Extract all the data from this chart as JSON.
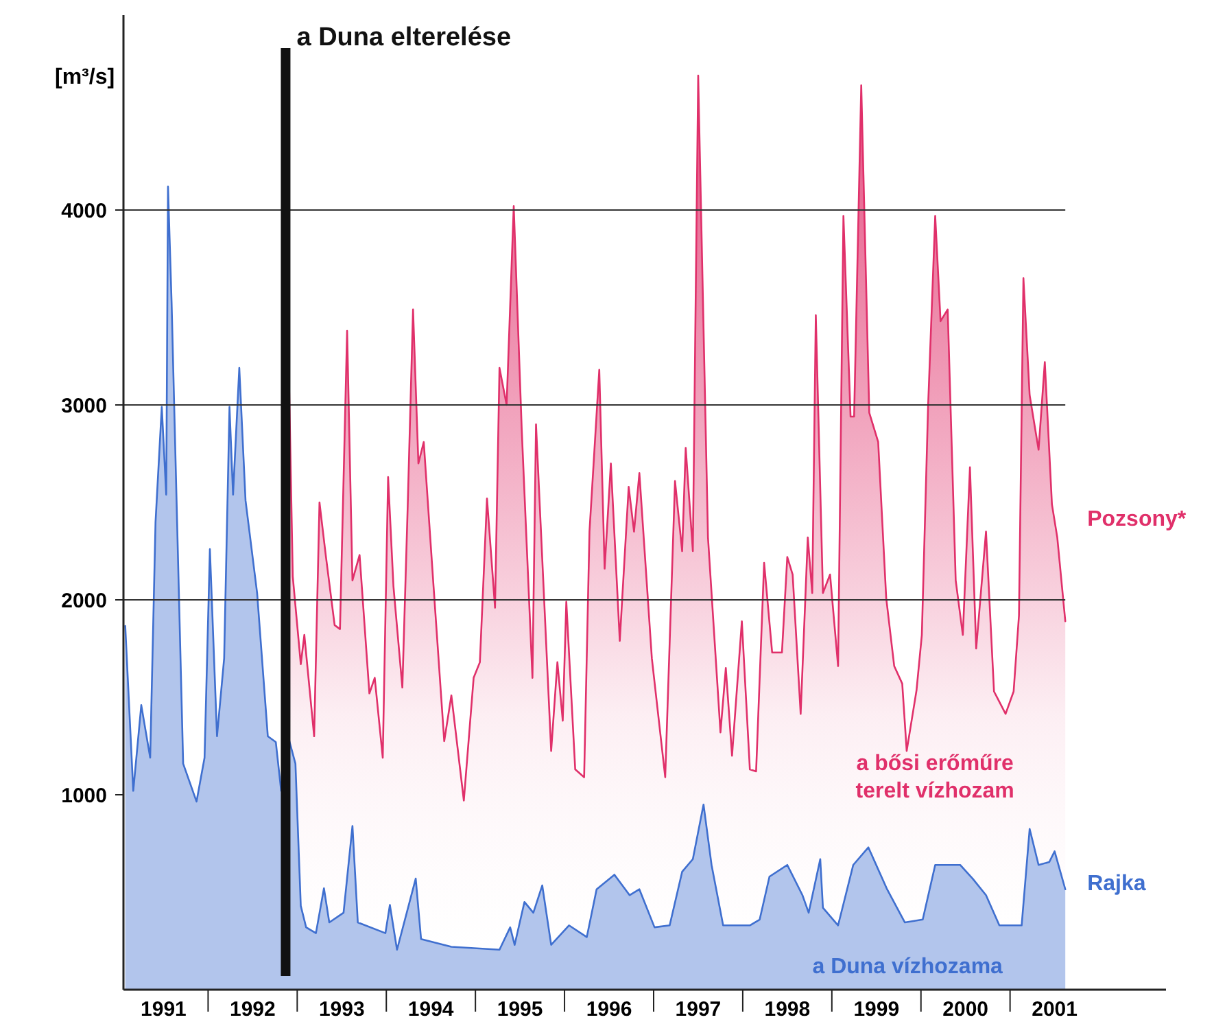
{
  "chart_data": {
    "type": "area",
    "ylabel": "[m³/s]",
    "xlim": [
      1991.05,
      2002.75
    ],
    "ylim": [
      0,
      5000
    ],
    "yticks": [
      1000,
      2000,
      3000,
      4000
    ],
    "xticks": [
      {
        "value": 1991.5,
        "label": "1991"
      },
      {
        "value": 1992,
        "label": null
      },
      {
        "value": 1992.5,
        "label": "1992"
      },
      {
        "value": 1993,
        "label": null
      },
      {
        "value": 1993.5,
        "label": "1993"
      },
      {
        "value": 1994,
        "label": null
      },
      {
        "value": 1994.5,
        "label": "1994"
      },
      {
        "value": 1995,
        "label": null
      },
      {
        "value": 1995.5,
        "label": "1995"
      },
      {
        "value": 1996,
        "label": null
      },
      {
        "value": 1996.5,
        "label": "1996"
      },
      {
        "value": 1997,
        "label": null
      },
      {
        "value": 1997.5,
        "label": "1997"
      },
      {
        "value": 1998,
        "label": null
      },
      {
        "value": 1998.5,
        "label": "1998"
      },
      {
        "value": 1999,
        "label": null
      },
      {
        "value": 1999.5,
        "label": "1999"
      },
      {
        "value": 2000,
        "label": null
      },
      {
        "value": 2000.5,
        "label": "2000"
      },
      {
        "value": 2001,
        "label": null
      },
      {
        "value": 2001.5,
        "label": "2001"
      }
    ],
    "series": [
      {
        "name": "Pozsony*",
        "color": "#e0306a",
        "x": [
          1992.9,
          1992.95,
          1993.04,
          1993.08,
          1993.19,
          1993.25,
          1993.32,
          1993.42,
          1993.48,
          1993.56,
          1993.62,
          1993.7,
          1993.81,
          1993.87,
          1993.96,
          1994.02,
          1994.08,
          1994.18,
          1994.24,
          1994.3,
          1994.36,
          1994.42,
          1994.53,
          1994.65,
          1994.73,
          1994.87,
          1994.98,
          1995.05,
          1995.13,
          1995.22,
          1995.27,
          1995.35,
          1995.43,
          1995.52,
          1995.64,
          1995.68,
          1995.85,
          1995.92,
          1995.98,
          1996.02,
          1996.12,
          1996.22,
          1996.28,
          1996.39,
          1996.45,
          1996.52,
          1996.62,
          1996.72,
          1996.78,
          1996.84,
          1996.98,
          1997.13,
          1997.24,
          1997.32,
          1997.36,
          1997.44,
          1997.5,
          1997.61,
          1997.75,
          1997.81,
          1997.88,
          1997.99,
          1998.08,
          1998.15,
          1998.24,
          1998.33,
          1998.44,
          1998.5,
          1998.56,
          1998.65,
          1998.73,
          1998.78,
          1998.82,
          1998.9,
          1998.98,
          1999.07,
          1999.13,
          1999.21,
          1999.25,
          1999.33,
          1999.42,
          1999.52,
          1999.61,
          1999.7,
          1999.79,
          1999.84,
          1999.95,
          2000.01,
          2000.08,
          2000.16,
          2000.22,
          2000.3,
          2000.39,
          2000.47,
          2000.55,
          2000.62,
          2000.73,
          2000.82,
          2000.95,
          2001.04,
          2001.1,
          2001.15,
          2001.22,
          2001.32,
          2001.39,
          2001.47,
          2001.53,
          2001.62
        ],
        "values": [
          3320,
          2120,
          1670,
          1820,
          1300,
          2500,
          2230,
          1870,
          1850,
          3380,
          2100,
          2230,
          1520,
          1600,
          1190,
          2630,
          2070,
          1550,
          2480,
          3490,
          2700,
          2810,
          2070,
          1275,
          1510,
          970,
          1600,
          1680,
          2520,
          1960,
          3190,
          3000,
          4020,
          2870,
          1600,
          2900,
          1225,
          1680,
          1380,
          1990,
          1130,
          1090,
          2350,
          3180,
          2160,
          2700,
          1790,
          2580,
          2350,
          2650,
          1700,
          1090,
          2610,
          2250,
          2780,
          2250,
          4690,
          2320,
          1320,
          1650,
          1200,
          1890,
          1130,
          1120,
          2190,
          1730,
          1730,
          2220,
          2130,
          1415,
          2320,
          2035,
          3460,
          2035,
          2130,
          1660,
          3970,
          2940,
          2940,
          4640,
          2960,
          2810,
          2010,
          1660,
          1570,
          1225,
          1535,
          1820,
          2990,
          3970,
          3430,
          3490,
          2100,
          1820,
          2680,
          1750,
          2350,
          1530,
          1415,
          1530,
          1920,
          3650,
          3050,
          2770,
          3220,
          2490,
          2320,
          1890
        ]
      },
      {
        "name": "Rajka",
        "color": "#3f6fcf",
        "x": [
          1991.07,
          1991.16,
          1991.25,
          1991.35,
          1991.41,
          1991.48,
          1991.53,
          1991.55,
          1991.59,
          1991.72,
          1991.87,
          1991.96,
          1992.02,
          1992.1,
          1992.18,
          1992.24,
          1992.28,
          1992.35,
          1992.42,
          1992.55,
          1992.67,
          1992.76,
          1992.82,
          1992.88,
          1992.98,
          1993.04,
          1993.1,
          1993.21,
          1993.3,
          1993.36,
          1993.52,
          1993.62,
          1993.68,
          1993.99,
          1994.04,
          1994.12,
          1994.33,
          1994.39,
          1994.73,
          1995.27,
          1995.39,
          1995.44,
          1995.55,
          1995.65,
          1995.75,
          1995.85,
          1996.05,
          1996.25,
          1996.36,
          1996.56,
          1996.73,
          1996.84,
          1997.01,
          1997.18,
          1997.32,
          1997.44,
          1997.56,
          1997.65,
          1997.78,
          1998.08,
          1998.19,
          1998.3,
          1998.5,
          1998.67,
          1998.74,
          1998.87,
          1998.9,
          1999.07,
          1999.24,
          1999.41,
          1999.62,
          1999.82,
          2000.02,
          2000.16,
          2000.44,
          2000.58,
          2000.73,
          2000.88,
          2001.13,
          2001.22,
          2001.32,
          2001.44,
          2001.5,
          2001.62
        ],
        "values": [
          1866,
          1020,
          1460,
          1190,
          2400,
          2990,
          2540,
          4120,
          3530,
          1160,
          965,
          1190,
          2260,
          1300,
          1700,
          2990,
          2540,
          3190,
          2510,
          2035,
          1300,
          1270,
          1020,
          1330,
          1160,
          430,
          320,
          290,
          520,
          345,
          395,
          840,
          345,
          290,
          435,
          205,
          570,
          260,
          220,
          205,
          320,
          230,
          450,
          395,
          535,
          230,
          330,
          270,
          515,
          590,
          485,
          515,
          320,
          330,
          605,
          670,
          950,
          640,
          330,
          330,
          360,
          580,
          640,
          485,
          395,
          670,
          420,
          330,
          640,
          730,
          515,
          345,
          360,
          640,
          640,
          570,
          485,
          330,
          330,
          825,
          640,
          655,
          710,
          515
        ]
      }
    ],
    "ref_lines": [
      {
        "axis": "y",
        "value": 2000,
        "color": "#333333"
      },
      {
        "axis": "y",
        "value": 3000,
        "color": "#333333"
      },
      {
        "axis": "y",
        "value": 4000,
        "color": "#333333"
      },
      {
        "axis": "x",
        "value": 1992.87,
        "label": "a Duna elterelése",
        "color": "#111111"
      }
    ],
    "annotations": [
      "a bősi erőműre\nterelt vízhozam",
      "a Duna vízhozama"
    ]
  }
}
